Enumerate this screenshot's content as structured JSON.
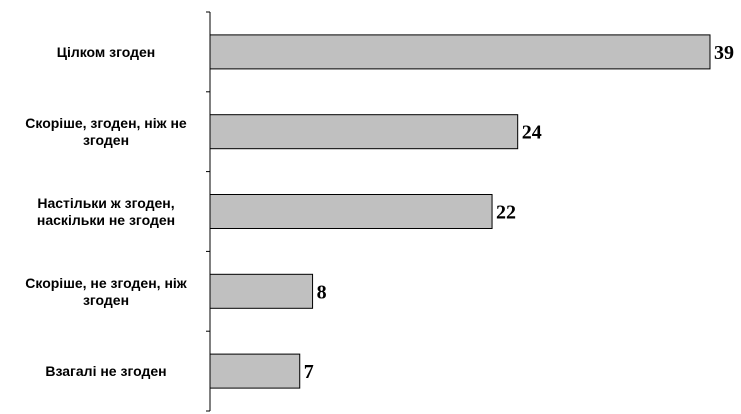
{
  "chart_data": {
    "type": "bar",
    "orientation": "horizontal",
    "categories": [
      "Цілком згоден",
      "Скоріше, згоден, ніж не згоден",
      "Настільки ж згоден, наскільки не згоден",
      "Скоріше, не згоден, ніж згоден",
      "Взагалі не згоден"
    ],
    "category_lines": [
      [
        "Цілком згоден"
      ],
      [
        "Скоріше, згоден, ніж не",
        "згоден"
      ],
      [
        "Настільки ж згоден,",
        "наскільки не згоден"
      ],
      [
        "Скоріше, не згоден, ніж",
        "згоден"
      ],
      [
        "Взагалі не згоден"
      ]
    ],
    "values": [
      39,
      24,
      22,
      8,
      7
    ],
    "data_labels": [
      "39",
      "24",
      "22",
      "8",
      "7"
    ],
    "xlim": [
      0,
      39
    ],
    "grid": false,
    "legend": "none",
    "colors": {
      "bar_fill": "#c0c0c0",
      "bar_stroke": "#000000",
      "axis": "#000000",
      "text": "#000000"
    }
  }
}
